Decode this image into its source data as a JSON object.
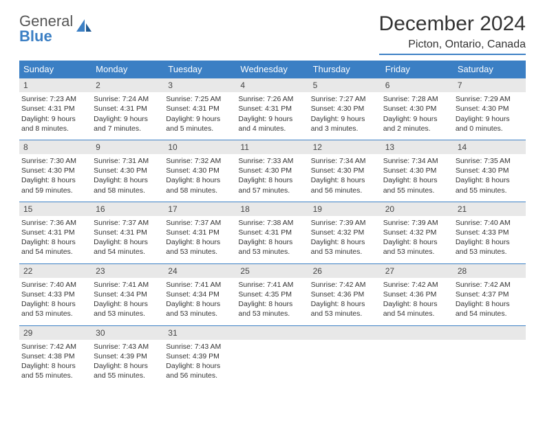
{
  "logo": {
    "text_part1": "General",
    "text_part2": "Blue",
    "icon_color": "#3b7fc4"
  },
  "title": "December 2024",
  "location": "Picton, Ontario, Canada",
  "colors": {
    "header_bg": "#3b7fc4",
    "day_num_bg": "#e8e8e8",
    "border": "#3b7fc4",
    "text": "#333333"
  },
  "day_names": [
    "Sunday",
    "Monday",
    "Tuesday",
    "Wednesday",
    "Thursday",
    "Friday",
    "Saturday"
  ],
  "days": [
    {
      "num": "1",
      "sunrise": "Sunrise: 7:23 AM",
      "sunset": "Sunset: 4:31 PM",
      "daylight": "Daylight: 9 hours and 8 minutes."
    },
    {
      "num": "2",
      "sunrise": "Sunrise: 7:24 AM",
      "sunset": "Sunset: 4:31 PM",
      "daylight": "Daylight: 9 hours and 7 minutes."
    },
    {
      "num": "3",
      "sunrise": "Sunrise: 7:25 AM",
      "sunset": "Sunset: 4:31 PM",
      "daylight": "Daylight: 9 hours and 5 minutes."
    },
    {
      "num": "4",
      "sunrise": "Sunrise: 7:26 AM",
      "sunset": "Sunset: 4:31 PM",
      "daylight": "Daylight: 9 hours and 4 minutes."
    },
    {
      "num": "5",
      "sunrise": "Sunrise: 7:27 AM",
      "sunset": "Sunset: 4:30 PM",
      "daylight": "Daylight: 9 hours and 3 minutes."
    },
    {
      "num": "6",
      "sunrise": "Sunrise: 7:28 AM",
      "sunset": "Sunset: 4:30 PM",
      "daylight": "Daylight: 9 hours and 2 minutes."
    },
    {
      "num": "7",
      "sunrise": "Sunrise: 7:29 AM",
      "sunset": "Sunset: 4:30 PM",
      "daylight": "Daylight: 9 hours and 0 minutes."
    },
    {
      "num": "8",
      "sunrise": "Sunrise: 7:30 AM",
      "sunset": "Sunset: 4:30 PM",
      "daylight": "Daylight: 8 hours and 59 minutes."
    },
    {
      "num": "9",
      "sunrise": "Sunrise: 7:31 AM",
      "sunset": "Sunset: 4:30 PM",
      "daylight": "Daylight: 8 hours and 58 minutes."
    },
    {
      "num": "10",
      "sunrise": "Sunrise: 7:32 AM",
      "sunset": "Sunset: 4:30 PM",
      "daylight": "Daylight: 8 hours and 58 minutes."
    },
    {
      "num": "11",
      "sunrise": "Sunrise: 7:33 AM",
      "sunset": "Sunset: 4:30 PM",
      "daylight": "Daylight: 8 hours and 57 minutes."
    },
    {
      "num": "12",
      "sunrise": "Sunrise: 7:34 AM",
      "sunset": "Sunset: 4:30 PM",
      "daylight": "Daylight: 8 hours and 56 minutes."
    },
    {
      "num": "13",
      "sunrise": "Sunrise: 7:34 AM",
      "sunset": "Sunset: 4:30 PM",
      "daylight": "Daylight: 8 hours and 55 minutes."
    },
    {
      "num": "14",
      "sunrise": "Sunrise: 7:35 AM",
      "sunset": "Sunset: 4:30 PM",
      "daylight": "Daylight: 8 hours and 55 minutes."
    },
    {
      "num": "15",
      "sunrise": "Sunrise: 7:36 AM",
      "sunset": "Sunset: 4:31 PM",
      "daylight": "Daylight: 8 hours and 54 minutes."
    },
    {
      "num": "16",
      "sunrise": "Sunrise: 7:37 AM",
      "sunset": "Sunset: 4:31 PM",
      "daylight": "Daylight: 8 hours and 54 minutes."
    },
    {
      "num": "17",
      "sunrise": "Sunrise: 7:37 AM",
      "sunset": "Sunset: 4:31 PM",
      "daylight": "Daylight: 8 hours and 53 minutes."
    },
    {
      "num": "18",
      "sunrise": "Sunrise: 7:38 AM",
      "sunset": "Sunset: 4:31 PM",
      "daylight": "Daylight: 8 hours and 53 minutes."
    },
    {
      "num": "19",
      "sunrise": "Sunrise: 7:39 AM",
      "sunset": "Sunset: 4:32 PM",
      "daylight": "Daylight: 8 hours and 53 minutes."
    },
    {
      "num": "20",
      "sunrise": "Sunrise: 7:39 AM",
      "sunset": "Sunset: 4:32 PM",
      "daylight": "Daylight: 8 hours and 53 minutes."
    },
    {
      "num": "21",
      "sunrise": "Sunrise: 7:40 AM",
      "sunset": "Sunset: 4:33 PM",
      "daylight": "Daylight: 8 hours and 53 minutes."
    },
    {
      "num": "22",
      "sunrise": "Sunrise: 7:40 AM",
      "sunset": "Sunset: 4:33 PM",
      "daylight": "Daylight: 8 hours and 53 minutes."
    },
    {
      "num": "23",
      "sunrise": "Sunrise: 7:41 AM",
      "sunset": "Sunset: 4:34 PM",
      "daylight": "Daylight: 8 hours and 53 minutes."
    },
    {
      "num": "24",
      "sunrise": "Sunrise: 7:41 AM",
      "sunset": "Sunset: 4:34 PM",
      "daylight": "Daylight: 8 hours and 53 minutes."
    },
    {
      "num": "25",
      "sunrise": "Sunrise: 7:41 AM",
      "sunset": "Sunset: 4:35 PM",
      "daylight": "Daylight: 8 hours and 53 minutes."
    },
    {
      "num": "26",
      "sunrise": "Sunrise: 7:42 AM",
      "sunset": "Sunset: 4:36 PM",
      "daylight": "Daylight: 8 hours and 53 minutes."
    },
    {
      "num": "27",
      "sunrise": "Sunrise: 7:42 AM",
      "sunset": "Sunset: 4:36 PM",
      "daylight": "Daylight: 8 hours and 54 minutes."
    },
    {
      "num": "28",
      "sunrise": "Sunrise: 7:42 AM",
      "sunset": "Sunset: 4:37 PM",
      "daylight": "Daylight: 8 hours and 54 minutes."
    },
    {
      "num": "29",
      "sunrise": "Sunrise: 7:42 AM",
      "sunset": "Sunset: 4:38 PM",
      "daylight": "Daylight: 8 hours and 55 minutes."
    },
    {
      "num": "30",
      "sunrise": "Sunrise: 7:43 AM",
      "sunset": "Sunset: 4:39 PM",
      "daylight": "Daylight: 8 hours and 55 minutes."
    },
    {
      "num": "31",
      "sunrise": "Sunrise: 7:43 AM",
      "sunset": "Sunset: 4:39 PM",
      "daylight": "Daylight: 8 hours and 56 minutes."
    }
  ]
}
